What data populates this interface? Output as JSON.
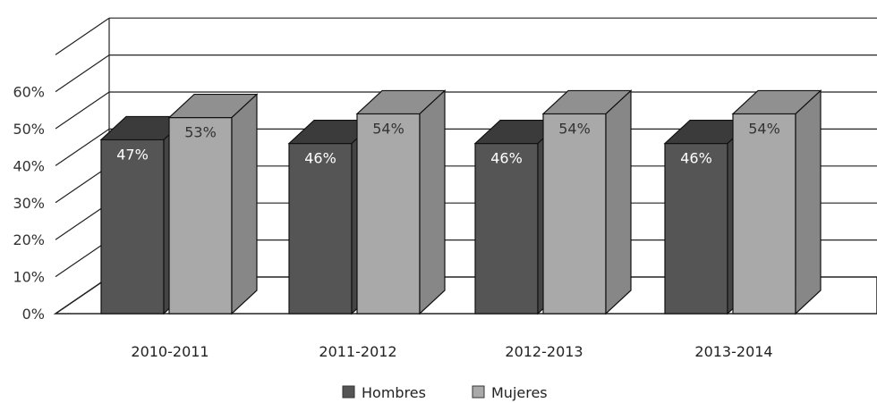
{
  "chart_data": {
    "type": "bar",
    "categories": [
      "2010-2011",
      "2011-2012",
      "2012-2013",
      "2013-2014"
    ],
    "series": [
      {
        "name": "Hombres",
        "values": [
          47,
          46,
          46,
          46
        ],
        "labels": [
          "47%",
          "46%",
          "46%",
          "46%"
        ],
        "color": "#555555"
      },
      {
        "name": "Mujeres",
        "values": [
          53,
          54,
          54,
          54
        ],
        "labels": [
          "53%",
          "54%",
          "54%",
          "54%"
        ],
        "color": "#a9a9a9"
      }
    ],
    "yticks": [
      "0%",
      "10%",
      "20%",
      "30%",
      "40%",
      "50%",
      "60%"
    ],
    "ylim": [
      0,
      70
    ],
    "style": "3d-clustered-column",
    "legend_position": "bottom",
    "grid": true
  }
}
